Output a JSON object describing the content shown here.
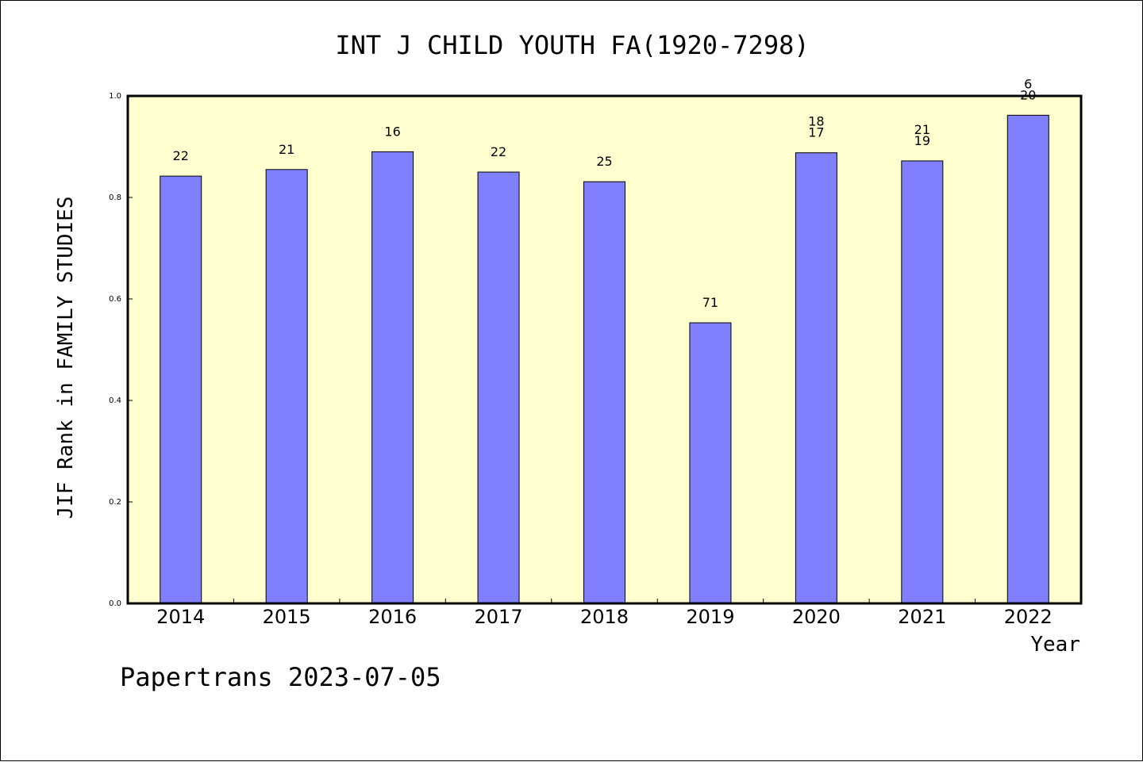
{
  "chart_data": {
    "type": "bar",
    "title": "INT J CHILD YOUTH FA(1920-7298)",
    "xlabel": "Year",
    "ylabel": "JIF Rank in FAMILY STUDIES",
    "ylim": [
      0,
      1.0
    ],
    "yticks": [
      "0.0",
      "0.2",
      "0.4",
      "0.6",
      "0.8",
      "1.0"
    ],
    "categories": [
      "2014",
      "2015",
      "2016",
      "2017",
      "2018",
      "2019",
      "2020",
      "2021",
      "2022"
    ],
    "values": [
      0.842,
      0.855,
      0.89,
      0.85,
      0.831,
      0.553,
      0.888,
      0.872,
      0.962
    ],
    "data_labels": [
      [
        "22"
      ],
      [
        "21"
      ],
      [
        "16"
      ],
      [
        "22"
      ],
      [
        "25"
      ],
      [
        "71"
      ],
      [
        "18",
        "17"
      ],
      [
        "21",
        "19"
      ],
      [
        "6",
        "20"
      ]
    ],
    "grid": false,
    "colors": {
      "bar": "#8080ff",
      "plot_bg": "#ffffd0"
    }
  },
  "footer": "Papertrans 2023-07-05"
}
